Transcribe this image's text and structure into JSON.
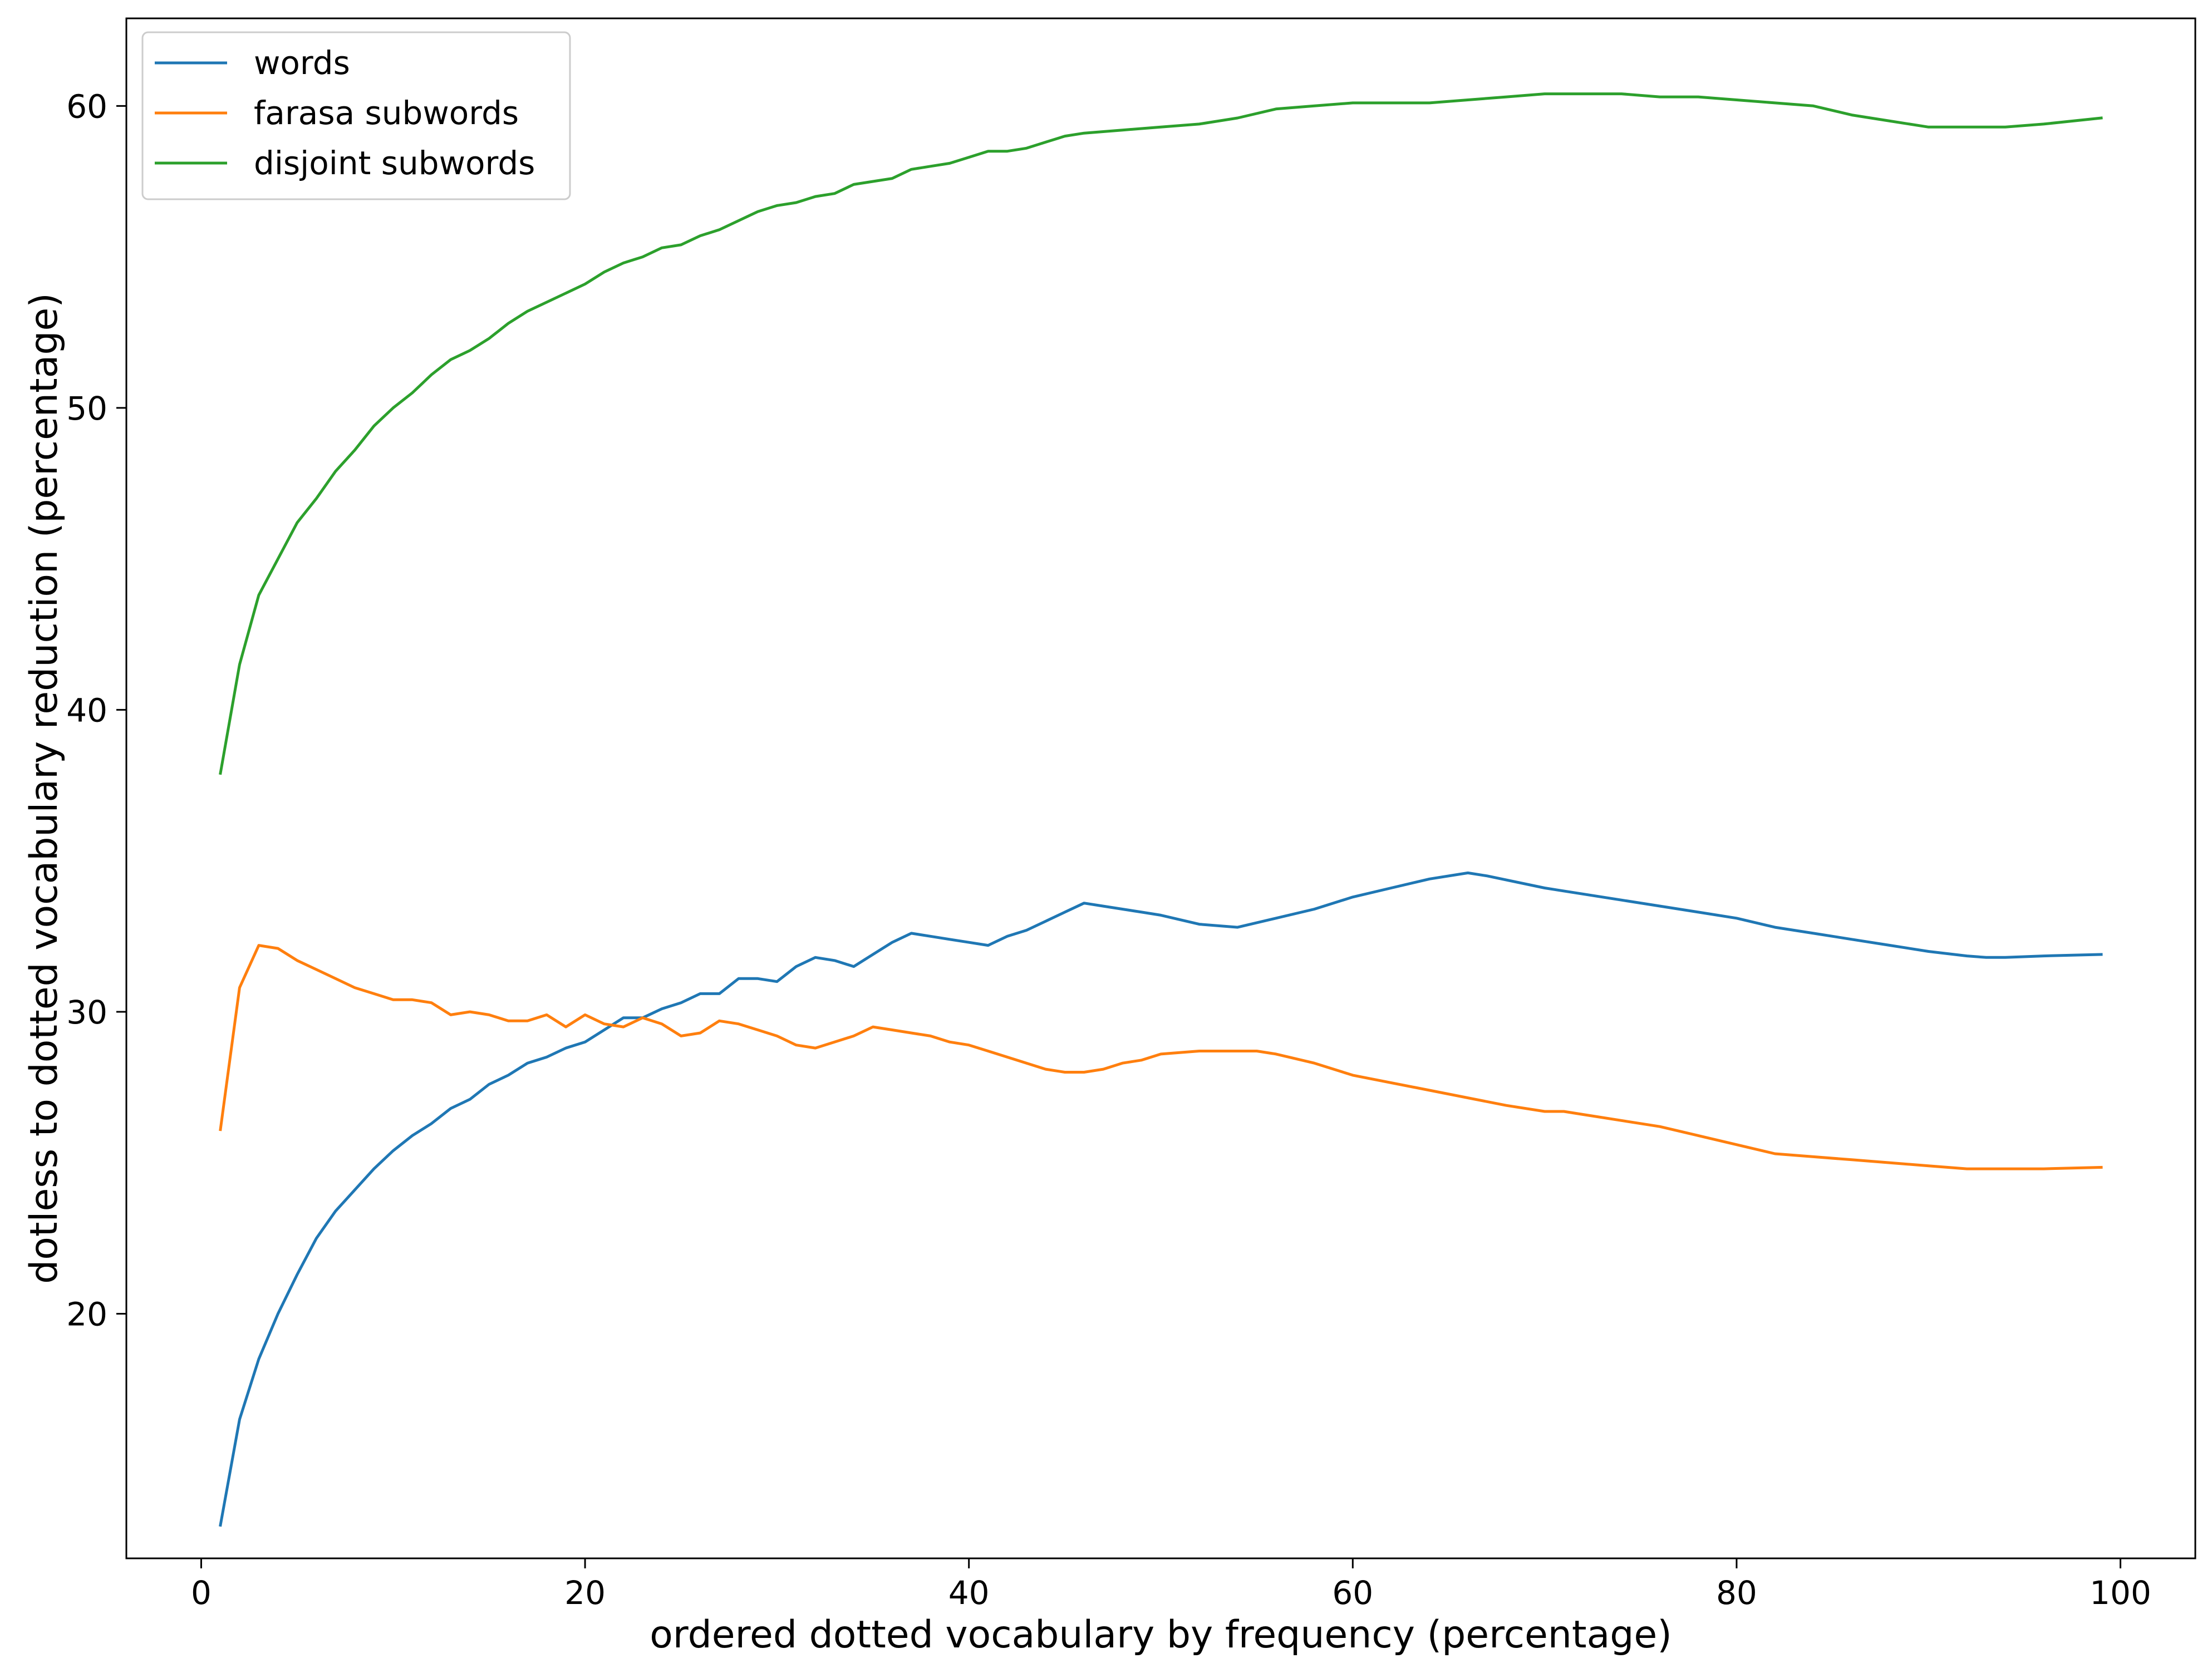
{
  "chart_data": {
    "type": "line",
    "title": "",
    "xlabel": "ordered dotted vocabulary by frequency (percentage)",
    "ylabel": "dotless to dotted vocabulary reduction (percentage)",
    "xlim": [
      -3.9,
      103.9
    ],
    "ylim": [
      11.9,
      62.9
    ],
    "xticks": [
      0,
      20,
      40,
      60,
      80,
      100
    ],
    "yticks": [
      20,
      30,
      40,
      50,
      60
    ],
    "grid": false,
    "legend_position": "top-left",
    "series": [
      {
        "name": "words",
        "color": "#1f77b4",
        "x": [
          1,
          2,
          3,
          4,
          5,
          6,
          7,
          8,
          9,
          10,
          11,
          12,
          13,
          14,
          15,
          16,
          17,
          18,
          19,
          20,
          21,
          22,
          23,
          24,
          25,
          26,
          27,
          28,
          29,
          30,
          31,
          32,
          33,
          34,
          35,
          36,
          37,
          38,
          39,
          40,
          41,
          42,
          43,
          44,
          45,
          46,
          47,
          48,
          49,
          50,
          52,
          54,
          56,
          58,
          60,
          62,
          64,
          66,
          67,
          70,
          74,
          78,
          80,
          82,
          84,
          85,
          86,
          88,
          90,
          92,
          93,
          94,
          96,
          99
        ],
        "y": [
          13,
          16.5,
          18.5,
          20,
          21.3,
          22.5,
          23.4,
          24.1,
          24.8,
          25.4,
          25.9,
          26.3,
          26.8,
          27.1,
          27.6,
          27.9,
          28.3,
          28.5,
          28.8,
          29,
          29.4,
          29.8,
          29.8,
          30.1,
          30.3,
          30.6,
          30.6,
          31.1,
          31.1,
          31,
          31.5,
          31.8,
          31.7,
          31.5,
          31.9,
          32.3,
          32.6,
          32.5,
          32.4,
          32.3,
          32.2,
          32.5,
          32.7,
          33,
          33.3,
          33.6,
          33.5,
          33.4,
          33.3,
          33.2,
          32.9,
          32.8,
          33.1,
          33.4,
          33.8,
          34.1,
          34.4,
          34.6,
          34.5,
          34.1,
          33.7,
          33.3,
          33.1,
          32.8,
          32.6,
          32.5,
          32.4,
          32.2,
          32,
          31.85,
          31.8,
          31.8,
          31.85,
          31.9
        ]
      },
      {
        "name": "farasa subwords",
        "color": "#ff7f0e",
        "x": [
          1,
          2,
          3,
          4,
          5,
          6,
          7,
          8,
          9,
          10,
          11,
          12,
          13,
          14,
          15,
          16,
          17,
          18,
          19,
          20,
          21,
          22,
          23,
          24,
          25,
          26,
          27,
          28,
          29,
          30,
          31,
          32,
          33,
          34,
          35,
          36,
          37,
          38,
          39,
          40,
          41,
          42,
          43,
          44,
          45,
          46,
          47,
          48,
          49,
          50,
          52,
          54,
          55,
          56,
          58,
          60,
          64,
          68,
          70,
          71,
          72,
          76,
          78,
          80,
          82,
          84,
          86,
          88,
          90,
          92,
          93,
          96,
          99
        ],
        "y": [
          26.1,
          30.8,
          32.2,
          32.1,
          31.7,
          31.4,
          31.1,
          30.8,
          30.6,
          30.4,
          30.4,
          30.3,
          29.9,
          30,
          29.9,
          29.7,
          29.7,
          29.9,
          29.5,
          29.9,
          29.6,
          29.5,
          29.8,
          29.6,
          29.2,
          29.3,
          29.7,
          29.6,
          29.4,
          29.2,
          28.9,
          28.8,
          29,
          29.2,
          29.5,
          29.4,
          29.3,
          29.2,
          29,
          28.9,
          28.7,
          28.5,
          28.3,
          28.1,
          28,
          28,
          28.1,
          28.3,
          28.4,
          28.6,
          28.7,
          28.7,
          28.7,
          28.6,
          28.3,
          27.9,
          27.4,
          26.9,
          26.7,
          26.7,
          26.6,
          26.2,
          25.9,
          25.6,
          25.3,
          25.2,
          25.1,
          25,
          24.9,
          24.8,
          24.8,
          24.8,
          24.85
        ]
      },
      {
        "name": "disjoint subwords",
        "color": "#2ca02c",
        "x": [
          1,
          2,
          3,
          4,
          5,
          6,
          7,
          8,
          9,
          10,
          11,
          12,
          13,
          14,
          15,
          16,
          17,
          18,
          19,
          20,
          21,
          22,
          23,
          24,
          25,
          26,
          27,
          28,
          29,
          30,
          31,
          32,
          33,
          34,
          35,
          36,
          37,
          38,
          39,
          40,
          41,
          42,
          43,
          44,
          45,
          46,
          48,
          50,
          52,
          54,
          56,
          58,
          60,
          62,
          64,
          66,
          68,
          70,
          72,
          74,
          76,
          78,
          80,
          82,
          84,
          86,
          88,
          90,
          92,
          94,
          96,
          99
        ],
        "y": [
          37.9,
          41.5,
          43.8,
          45,
          46.2,
          47,
          47.9,
          48.6,
          49.4,
          50,
          50.5,
          51.1,
          51.6,
          51.9,
          52.3,
          52.8,
          53.2,
          53.5,
          53.8,
          54.1,
          54.5,
          54.8,
          55,
          55.3,
          55.4,
          55.7,
          55.9,
          56.2,
          56.5,
          56.7,
          56.8,
          57,
          57.1,
          57.4,
          57.5,
          57.6,
          57.9,
          58,
          58.1,
          58.3,
          58.5,
          58.5,
          58.6,
          58.8,
          59,
          59.1,
          59.2,
          59.3,
          59.4,
          59.6,
          59.9,
          60,
          60.1,
          60.1,
          60.1,
          60.2,
          60.3,
          60.4,
          60.4,
          60.4,
          60.3,
          60.3,
          60.2,
          60.1,
          60,
          59.7,
          59.5,
          59.3,
          59.3,
          59.3,
          59.4,
          59.6
        ]
      }
    ]
  }
}
